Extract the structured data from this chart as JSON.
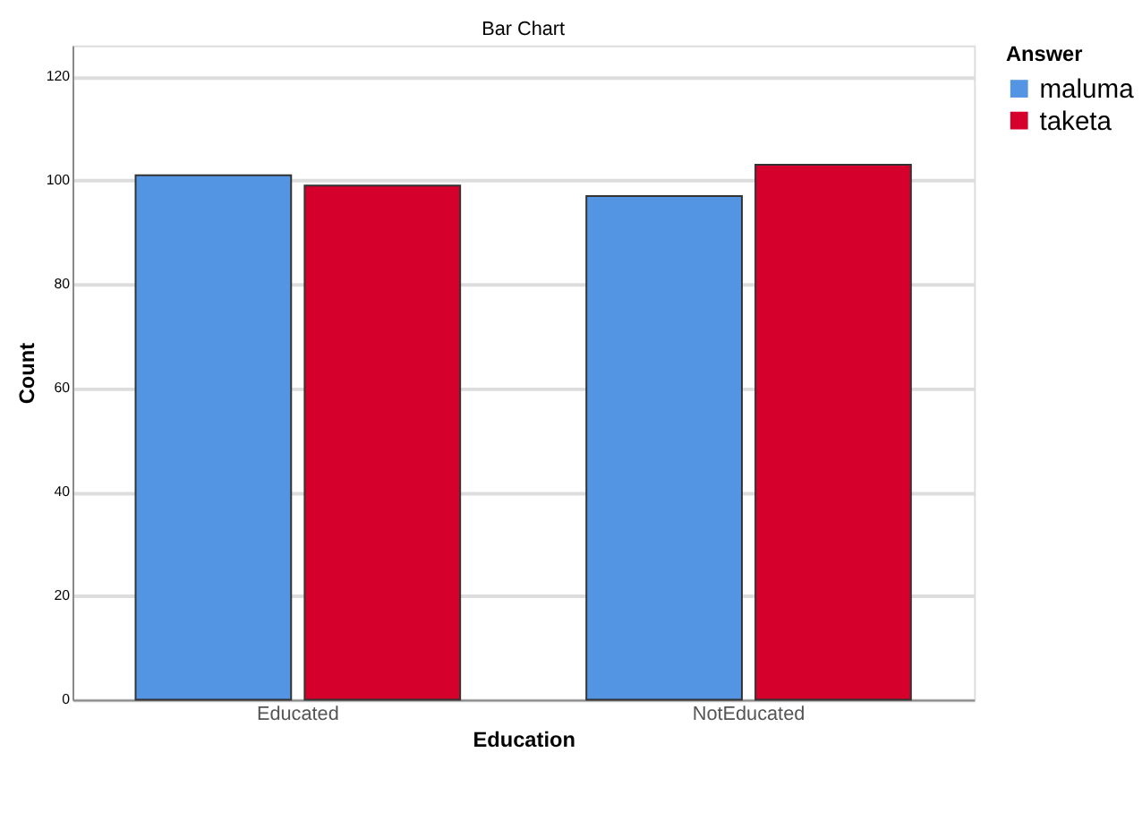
{
  "chart_data": {
    "type": "bar",
    "title": "Bar Chart",
    "xlabel": "Education",
    "ylabel": "Count",
    "legend_title": "Answer",
    "categories": [
      "Educated",
      "NotEducated"
    ],
    "series": [
      {
        "name": "maluma",
        "color": "#5394e3",
        "values": [
          101,
          97
        ]
      },
      {
        "name": "taketa",
        "color": "#d5002c",
        "values": [
          99,
          103
        ]
      }
    ],
    "ylim": [
      0,
      126
    ],
    "yticks": [
      0,
      20,
      40,
      60,
      80,
      100,
      120
    ],
    "grid": "y",
    "legend": "top right"
  }
}
